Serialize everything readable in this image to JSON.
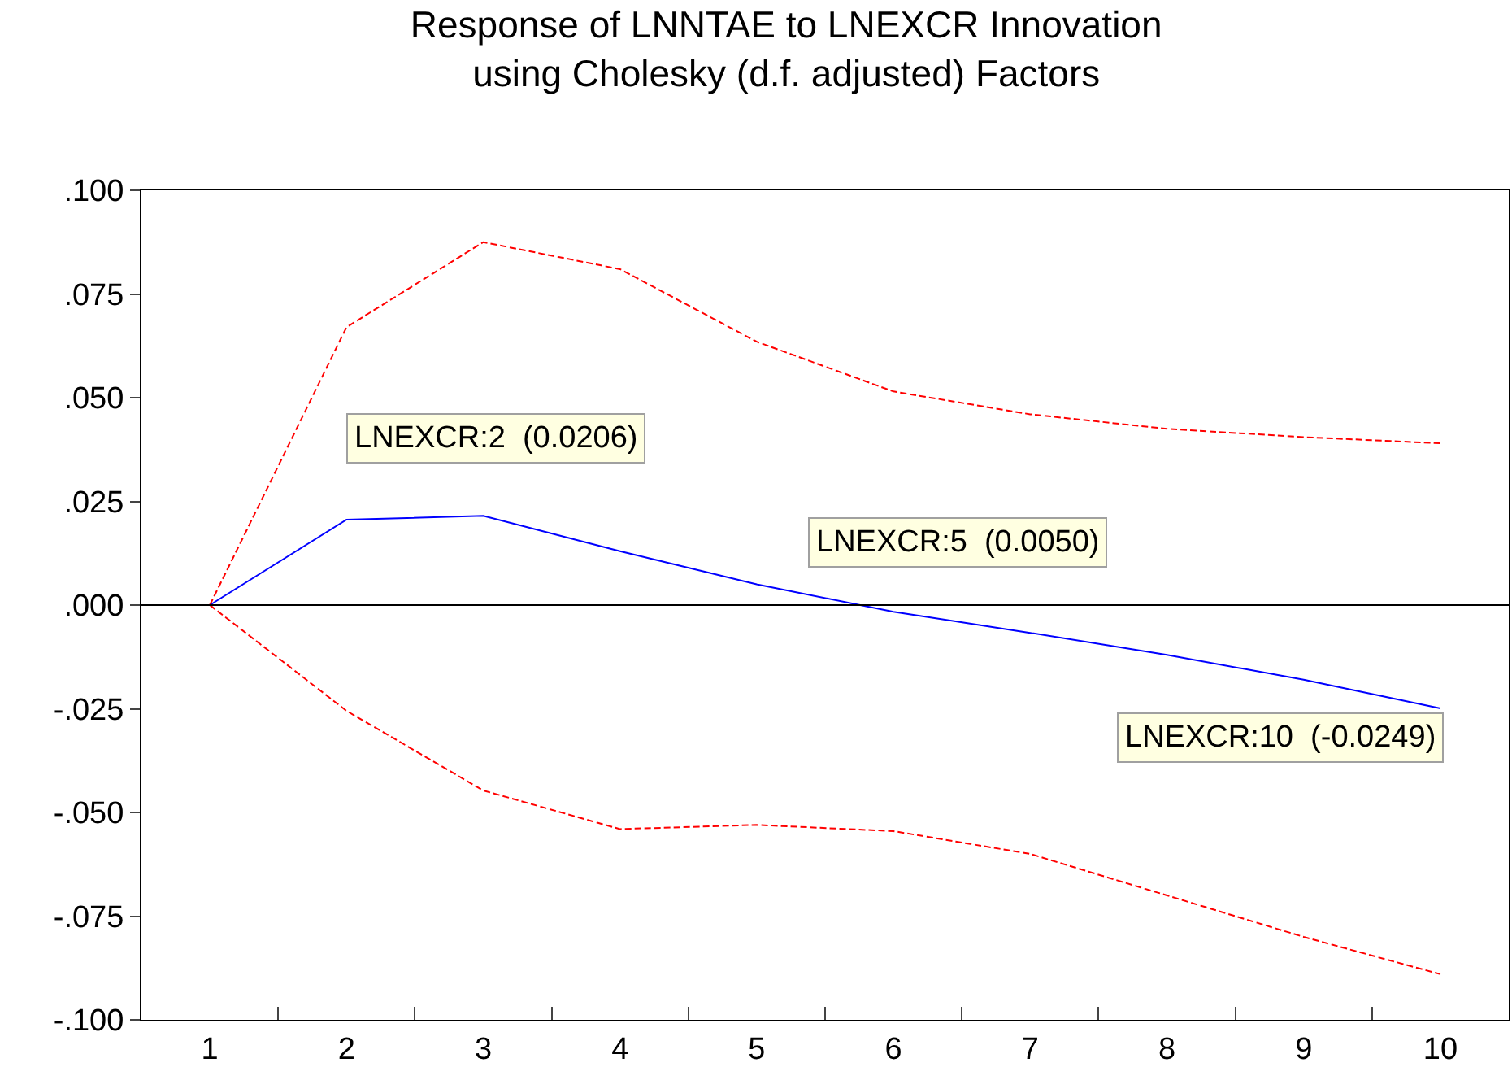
{
  "chart_data": {
    "type": "line",
    "title": "Response of LNNTAE to LNEXCR Innovation\nusing Cholesky (d.f. adjusted) Factors",
    "categories": [
      "1",
      "2",
      "3",
      "4",
      "5",
      "6",
      "7",
      "8",
      "9",
      "10"
    ],
    "series": [
      {
        "color": "#0000ff",
        "line_style": "solid",
        "values": [
          0,
          0.0206,
          0.0215,
          0.013,
          0.005,
          -0.0016,
          -0.0067,
          -0.012,
          -0.018,
          -0.0249
        ]
      },
      {
        "color": "#ff0000",
        "line_style": "dashed",
        "values": [
          0,
          0.067,
          0.0875,
          0.081,
          0.0635,
          0.0515,
          0.046,
          0.0425,
          0.0405,
          0.039
        ]
      },
      {
        "color": "#ff0000",
        "line_style": "dashed",
        "values": [
          0,
          -0.0255,
          -0.0447,
          -0.054,
          -0.053,
          -0.0545,
          -0.06,
          -0.07,
          -0.08,
          -0.089
        ]
      }
    ],
    "ylim": [
      -0.1,
      0.1
    ],
    "yticks": [
      {
        "value": -0.1,
        "label": "-.100"
      },
      {
        "value": -0.075,
        "label": "-.075"
      },
      {
        "value": -0.05,
        "label": "-.050"
      },
      {
        "value": -0.025,
        "label": "-.025"
      },
      {
        "value": 0,
        "label": ".000"
      },
      {
        "value": 0.025,
        "label": ".025"
      },
      {
        "value": 0.05,
        "label": ".050"
      },
      {
        "value": 0.075,
        "label": ".075"
      },
      {
        "value": 0.1,
        "label": ".100"
      }
    ],
    "ref_lines": [
      {
        "axis": "y",
        "value": 0,
        "color": "#000000"
      }
    ],
    "annotations": [
      {
        "text": "LNEXCR:2  (0.0206)",
        "x": "2",
        "y": 0.0206
      },
      {
        "text": "LNEXCR:5  (0.0050)",
        "x": "5",
        "y": 0.005
      },
      {
        "text": "LNEXCR:10  (-0.0249)",
        "x": "10",
        "y": -0.0249
      }
    ],
    "grid": false,
    "marker": "none"
  }
}
